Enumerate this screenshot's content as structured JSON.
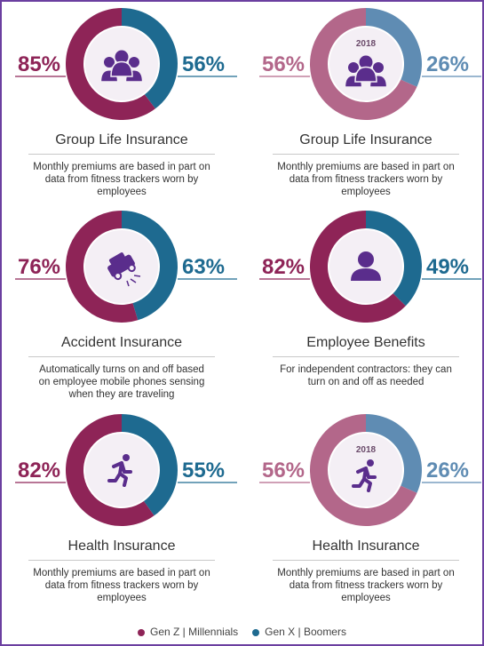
{
  "chart_data": [
    {
      "type": "donut",
      "title": "Group Life Insurance",
      "subtitle": "Monthly premiums are based in part on data from fitness trackers worn by employees",
      "icon": "group",
      "values": [
        85,
        56
      ],
      "value_labels": [
        "85%",
        "56%"
      ],
      "colors": [
        "#8e2457",
        "#1e6a90"
      ]
    },
    {
      "type": "donut",
      "title": "Group Life Insurance",
      "annotation": "2018",
      "subtitle": "Monthly premiums are based in part on data from fitness trackers worn by employees",
      "icon": "group",
      "values": [
        56,
        26
      ],
      "value_labels": [
        "56%",
        "26%"
      ],
      "colors": [
        "#b3678a",
        "#5f8cb3"
      ]
    },
    {
      "type": "donut",
      "title": "Accident Insurance",
      "subtitle": "Automatically turns on and off based on employee mobile phones sensing when they are traveling",
      "icon": "car",
      "values": [
        76,
        63
      ],
      "value_labels": [
        "76%",
        "63%"
      ],
      "colors": [
        "#8e2457",
        "#1e6a90"
      ]
    },
    {
      "type": "donut",
      "title": "Employee Benefits",
      "subtitle": "For independent contractors: they can turn on and off as needed",
      "icon": "person",
      "values": [
        82,
        49
      ],
      "value_labels": [
        "82%",
        "49%"
      ],
      "colors": [
        "#8e2457",
        "#1e6a90"
      ]
    },
    {
      "type": "donut",
      "title": "Health Insurance",
      "subtitle": "Monthly premiums are based in part on data from fitness trackers worn by employees",
      "icon": "runner",
      "values": [
        82,
        55
      ],
      "value_labels": [
        "82%",
        "55%"
      ],
      "colors": [
        "#8e2457",
        "#1e6a90"
      ]
    },
    {
      "type": "donut",
      "title": "Health Insurance",
      "annotation": "2018",
      "subtitle": "Monthly premiums are based in part on data from fitness trackers worn by employees",
      "icon": "runner",
      "values": [
        56,
        26
      ],
      "value_labels": [
        "56%",
        "26%"
      ],
      "colors": [
        "#b3678a",
        "#5f8cb3"
      ]
    }
  ],
  "legend": [
    {
      "label": "Gen Z | Millennials",
      "color": "#8e2457"
    },
    {
      "label": "Gen X | Boomers",
      "color": "#1e6a90"
    }
  ]
}
